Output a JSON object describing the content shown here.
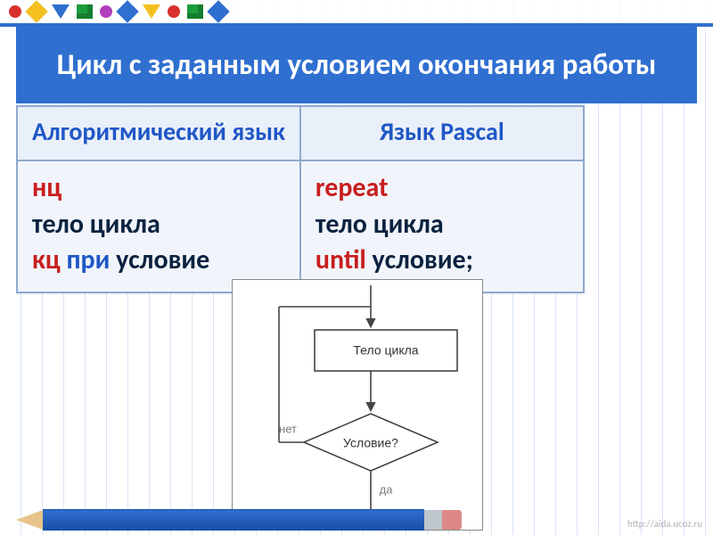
{
  "decor": {
    "colors": [
      "#d8312b",
      "#f4c020",
      "#2f6fd0",
      "#1b9e3a",
      "#b23fbb",
      "#2f6fd0",
      "#f4c020",
      "#d8312b",
      "#1b9e3a",
      "#2f6fd0"
    ],
    "bar_color": "#2f6fd0"
  },
  "title": "Цикл с заданным условием окончания работы",
  "title_bg": "#2f6fd0",
  "title_fg": "#ffffff",
  "title_fontsize": 33,
  "table": {
    "header_color": "#1f57c7",
    "border_color": "#8fa9cf",
    "header_bg": "#eaf0f9",
    "cell_bg": "#f1f5fb",
    "header_fontsize": 28,
    "cell_fontsize": 30,
    "headers": [
      "Алгоритмический язык",
      "Язык Pascal"
    ],
    "left": {
      "line1": {
        "parts": [
          {
            "text": "нц",
            "cls": "c-red"
          }
        ]
      },
      "line2": {
        "parts": [
          {
            "text": "тело цикла",
            "cls": "c-dark"
          }
        ]
      },
      "line3": {
        "parts": [
          {
            "text": "кц ",
            "cls": "c-red"
          },
          {
            "text": "при ",
            "cls": "c-blue"
          },
          {
            "text": "условие",
            "cls": "c-dark"
          }
        ]
      }
    },
    "right": {
      "line1": {
        "parts": [
          {
            "text": "repeat",
            "cls": "c-red"
          }
        ]
      },
      "line2": {
        "parts": [
          {
            "text": "тело цикла",
            "cls": "c-dark"
          }
        ]
      },
      "line3": {
        "parts": [
          {
            "text": "until  ",
            "cls": "c-red"
          },
          {
            "text": "условие;",
            "cls": "c-dark"
          }
        ]
      }
    }
  },
  "flowchart": {
    "box_label": "Тело цикла",
    "diamond_label": "Условие?",
    "label_no": "нет",
    "label_yes": "да",
    "stroke": "#444444",
    "fill": "#ffffff",
    "text_color": "#333333",
    "edge_label_color": "#7a7a7a",
    "label_fontsize": 14,
    "edge_fontsize": 13
  },
  "watermark": "http://aida.ucoz.ru",
  "colors": {
    "red": "#c81e1e",
    "dark": "#0b2340",
    "blue": "#1f57c7",
    "grid": "#c8d8f4"
  }
}
